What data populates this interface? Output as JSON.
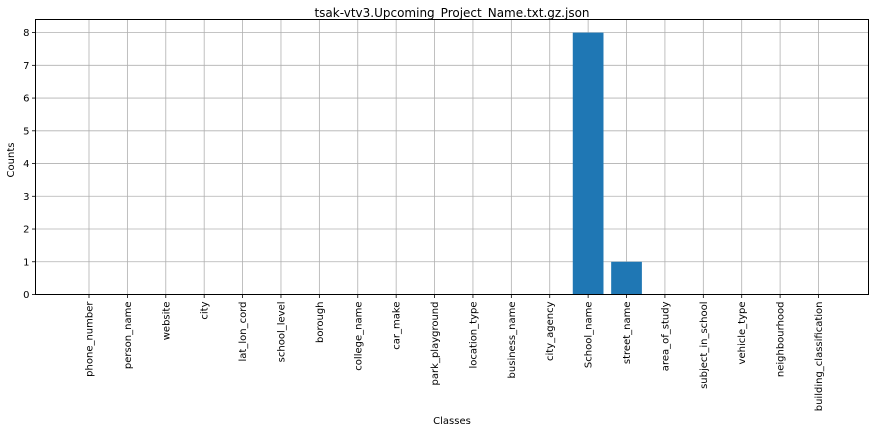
{
  "chart_data": {
    "type": "bar",
    "title": "tsak-vtv3.Upcoming_Project_Name.txt.gz.json",
    "xlabel": "Classes",
    "ylabel": "Counts",
    "categories": [
      "phone_number",
      "person_name",
      "website",
      "city",
      "lat_lon_cord",
      "school_level",
      "borough",
      "college_name",
      "car_make",
      "park_playground",
      "location_type",
      "business_name",
      "city_agency",
      "School_name",
      "street_name",
      "area_of_study",
      "subject_in_school",
      "vehicle_type",
      "neighbourhood",
      "building_classification"
    ],
    "values": [
      0,
      0,
      0,
      0,
      0,
      0,
      0,
      0,
      0,
      0,
      0,
      0,
      0,
      8,
      1,
      0,
      0,
      0,
      0,
      0
    ],
    "yticks": [
      "0",
      "1",
      "2",
      "3",
      "4",
      "5",
      "6",
      "7",
      "8"
    ],
    "ylim": [
      0,
      8.4
    ],
    "grid": true,
    "bar_color": "#1f77b4",
    "grid_color": "#b0b0b0"
  }
}
